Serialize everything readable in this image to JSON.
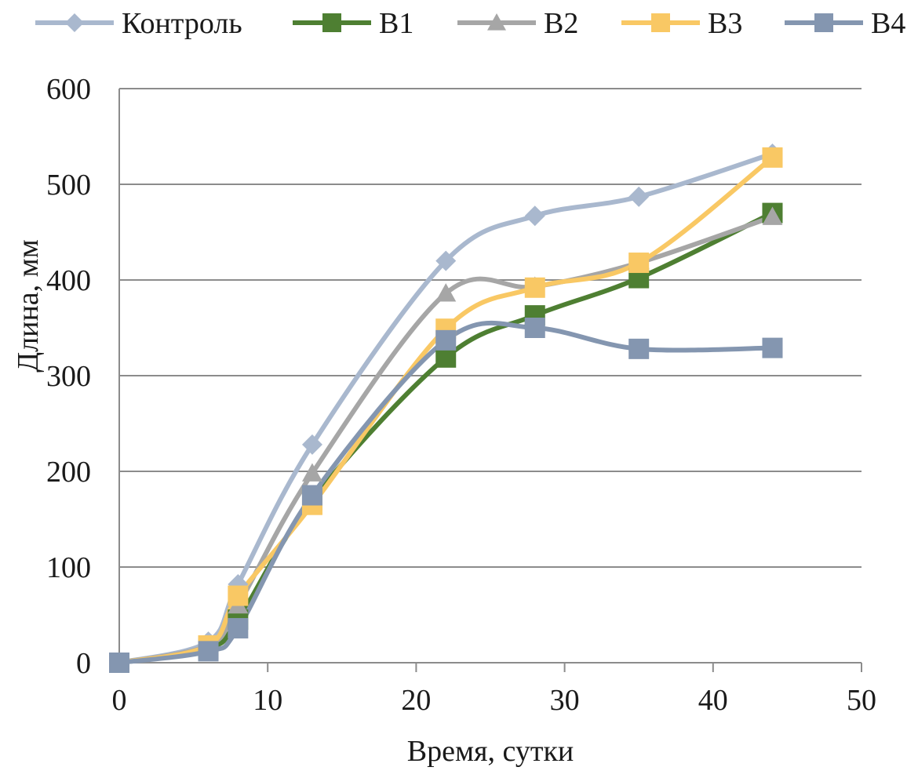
{
  "chart_data": {
    "type": "line",
    "title": "",
    "xlabel": "Время, сутки",
    "ylabel": "Длина, мм",
    "xlim": [
      0,
      50
    ],
    "ylim": [
      0,
      600
    ],
    "xticks": [
      0,
      10,
      20,
      30,
      40,
      50
    ],
    "yticks": [
      0,
      100,
      200,
      300,
      400,
      500,
      600
    ],
    "grid": "horizontal",
    "legend_position": "top",
    "series": [
      {
        "name": "Контроль",
        "color": "#a9b8ce",
        "marker": "diamond",
        "x": [
          0,
          6,
          8,
          13,
          22,
          28,
          35,
          44
        ],
        "y": [
          0,
          22,
          82,
          228,
          420,
          467,
          487,
          532
        ]
      },
      {
        "name": "В1",
        "color": "#4e7f32",
        "marker": "square",
        "x": [
          0,
          6,
          8,
          13,
          22,
          28,
          35,
          44
        ],
        "y": [
          0,
          15,
          45,
          170,
          319,
          363,
          402,
          470
        ]
      },
      {
        "name": "В2",
        "color": "#a6a6a6",
        "marker": "triangle",
        "x": [
          0,
          6,
          8,
          13,
          22,
          28,
          35,
          44
        ],
        "y": [
          0,
          18,
          60,
          198,
          386,
          393,
          418,
          466
        ]
      },
      {
        "name": "В3",
        "color": "#f9c864",
        "marker": "square",
        "x": [
          0,
          6,
          8,
          13,
          22,
          28,
          35,
          44
        ],
        "y": [
          0,
          18,
          70,
          165,
          349,
          392,
          418,
          528
        ]
      },
      {
        "name": "В4",
        "color": "#8496b0",
        "marker": "square",
        "x": [
          0,
          6,
          8,
          13,
          22,
          28,
          35,
          44
        ],
        "y": [
          0,
          12,
          36,
          175,
          337,
          350,
          328,
          329
        ]
      }
    ]
  }
}
